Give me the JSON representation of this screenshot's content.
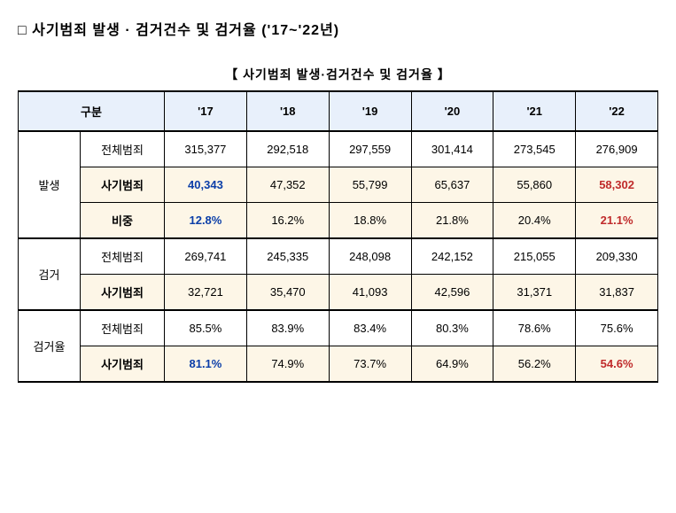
{
  "title": "사기범죄 발생 · 검거건수 및 검거율 ('17~'22년)",
  "caption": "【 사기범죄 발생·검거건수 및 검거율 】",
  "header": {
    "category": "구분",
    "years": [
      "'17",
      "'18",
      "'19",
      "'20",
      "'21",
      "'22"
    ]
  },
  "groups": [
    {
      "label": "발생",
      "rows": [
        {
          "label": "전체범죄",
          "shade": false,
          "labelBold": false,
          "cells": [
            {
              "v": "315,377"
            },
            {
              "v": "292,518"
            },
            {
              "v": "297,559"
            },
            {
              "v": "301,414"
            },
            {
              "v": "273,545"
            },
            {
              "v": "276,909"
            }
          ]
        },
        {
          "label": "사기범죄",
          "shade": true,
          "labelBold": true,
          "cells": [
            {
              "v": "40,343",
              "cls": "blue"
            },
            {
              "v": "47,352"
            },
            {
              "v": "55,799"
            },
            {
              "v": "65,637"
            },
            {
              "v": "55,860"
            },
            {
              "v": "58,302",
              "cls": "red"
            }
          ]
        },
        {
          "label": "비중",
          "shade": true,
          "labelBold": true,
          "cells": [
            {
              "v": "12.8%",
              "cls": "blue"
            },
            {
              "v": "16.2%"
            },
            {
              "v": "18.8%"
            },
            {
              "v": "21.8%"
            },
            {
              "v": "20.4%"
            },
            {
              "v": "21.1%",
              "cls": "red"
            }
          ]
        }
      ]
    },
    {
      "label": "검거",
      "rows": [
        {
          "label": "전체범죄",
          "shade": false,
          "labelBold": false,
          "cells": [
            {
              "v": "269,741"
            },
            {
              "v": "245,335"
            },
            {
              "v": "248,098"
            },
            {
              "v": "242,152"
            },
            {
              "v": "215,055"
            },
            {
              "v": "209,330"
            }
          ]
        },
        {
          "label": "사기범죄",
          "shade": true,
          "labelBold": true,
          "cells": [
            {
              "v": "32,721"
            },
            {
              "v": "35,470"
            },
            {
              "v": "41,093"
            },
            {
              "v": "42,596"
            },
            {
              "v": "31,371"
            },
            {
              "v": "31,837"
            }
          ]
        }
      ]
    },
    {
      "label": "검거율",
      "rows": [
        {
          "label": "전체범죄",
          "shade": false,
          "labelBold": false,
          "cells": [
            {
              "v": "85.5%"
            },
            {
              "v": "83.9%"
            },
            {
              "v": "83.4%"
            },
            {
              "v": "80.3%"
            },
            {
              "v": "78.6%"
            },
            {
              "v": "75.6%"
            }
          ]
        },
        {
          "label": "사기범죄",
          "shade": true,
          "labelBold": true,
          "cells": [
            {
              "v": "81.1%",
              "cls": "blue"
            },
            {
              "v": "74.9%"
            },
            {
              "v": "73.7%"
            },
            {
              "v": "64.9%"
            },
            {
              "v": "56.2%"
            },
            {
              "v": "54.6%",
              "cls": "red"
            }
          ]
        }
      ]
    }
  ]
}
